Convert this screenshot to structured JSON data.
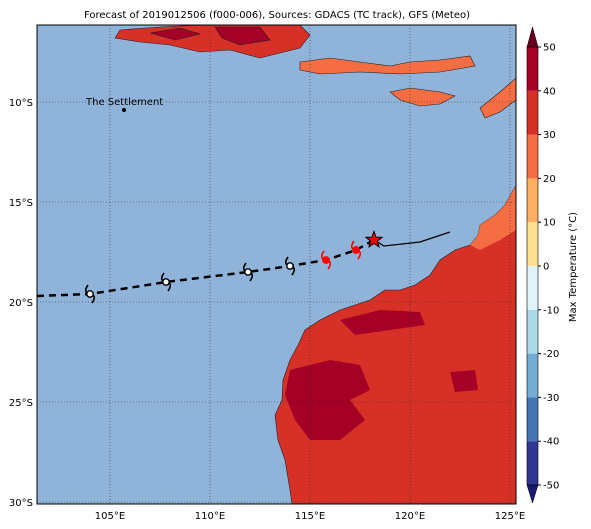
{
  "map": {
    "title": "Forecast of 2019012506 (f000-006), Sources: GDACS (TC track), GFS (Meteo)",
    "lonlim": [
      101.35,
      125.3
    ],
    "latlim": [
      -30.1,
      -6.15
    ],
    "lon_ticks": [
      {
        "value": 105,
        "label": "105°E"
      },
      {
        "value": 110,
        "label": "110°E"
      },
      {
        "value": 115,
        "label": "115°E"
      },
      {
        "value": 120,
        "label": "120°E"
      },
      {
        "value": 125,
        "label": "125°E"
      }
    ],
    "lat_ticks": [
      {
        "value": -10,
        "label": "10°S"
      },
      {
        "value": -15,
        "label": "15°S"
      },
      {
        "value": -20,
        "label": "20°S"
      },
      {
        "value": -25,
        "label": "25°S"
      },
      {
        "value": -30,
        "label": "30°S"
      }
    ],
    "place": {
      "label": "The Settlement",
      "lon": 105.7,
      "lat": -10.4
    },
    "forecast_track": {
      "lon": [
        101.35,
        104,
        107.8,
        111.9,
        114,
        115.8,
        117.3,
        118.2
      ],
      "lat": [
        -19.7,
        -19.6,
        -19,
        -18.5,
        -18.2,
        -17.9,
        -17.4,
        -16.9
      ]
    },
    "past_track": {
      "lon": [
        118.2,
        118.7,
        120.5,
        122
      ],
      "lat": [
        -16.9,
        -17.2,
        -17,
        -16.5
      ]
    },
    "storms": {
      "lon": [
        104,
        107.8,
        111.9,
        114,
        115.8,
        117.3
      ],
      "lat": [
        -19.6,
        -19,
        -18.5,
        -18.2,
        -17.9,
        -17.4
      ],
      "colors": [
        "black",
        "black",
        "black",
        "black",
        "red",
        "red"
      ]
    },
    "current": {
      "lon": 118.2,
      "lat": -16.9
    },
    "colorbar": {
      "label": "Max Temperature (°C)",
      "clim": [
        -50,
        50
      ],
      "ticks": [
        50,
        40,
        30,
        20,
        10,
        0,
        -10,
        -20,
        -30,
        -40,
        -50
      ],
      "colors": [
        "#313695",
        "#4575b4",
        "#74add1",
        "#abd9e9",
        "#e0f3f8",
        "#fee090",
        "#fdae61",
        "#f46d43",
        "#d73027",
        "#a50026"
      ]
    }
  }
}
